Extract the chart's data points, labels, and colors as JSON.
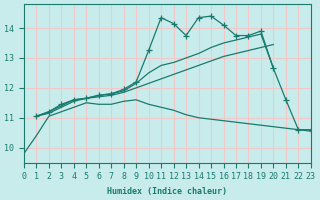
{
  "xlabel": "Humidex (Indice chaleur)",
  "bg_color": "#c8ecec",
  "grid_color": "#f0c8c8",
  "line_color": "#1a7a6e",
  "xlim": [
    0,
    23
  ],
  "ylim": [
    9.5,
    14.8
  ],
  "xticks": [
    0,
    1,
    2,
    3,
    4,
    5,
    6,
    7,
    8,
    9,
    10,
    11,
    12,
    13,
    14,
    15,
    16,
    17,
    18,
    19,
    20,
    21,
    22,
    23
  ],
  "yticks": [
    10,
    11,
    12,
    13,
    14
  ],
  "series": [
    {
      "x": [
        0,
        1,
        2,
        3,
        4,
        5,
        6,
        7,
        8,
        9,
        10,
        11,
        12,
        13,
        14,
        15,
        16,
        17,
        18,
        19,
        20,
        21,
        22,
        23
      ],
      "y": [
        9.8,
        10.4,
        11.05,
        11.2,
        11.35,
        11.5,
        11.45,
        11.45,
        11.55,
        11.6,
        11.45,
        11.35,
        11.25,
        11.1,
        11.0,
        10.95,
        10.9,
        10.85,
        10.8,
        10.75,
        10.7,
        10.65,
        10.6,
        10.55
      ],
      "marker": false
    },
    {
      "x": [
        1,
        2,
        3,
        4,
        5,
        6,
        7,
        8,
        9,
        10,
        11,
        12,
        13,
        14,
        15,
        16,
        17,
        18,
        19,
        20
      ],
      "y": [
        11.05,
        11.15,
        11.35,
        11.55,
        11.65,
        11.7,
        11.75,
        11.85,
        12.0,
        12.15,
        12.3,
        12.45,
        12.6,
        12.75,
        12.9,
        13.05,
        13.15,
        13.25,
        13.35,
        13.45
      ],
      "marker": false
    },
    {
      "x": [
        1,
        2,
        3,
        4,
        5,
        6,
        7,
        8,
        9,
        10,
        11,
        12,
        13,
        14,
        15,
        16,
        17,
        18,
        19,
        20
      ],
      "y": [
        11.05,
        11.2,
        11.4,
        11.6,
        11.65,
        11.75,
        11.8,
        11.9,
        12.15,
        12.5,
        12.75,
        12.85,
        13.0,
        13.15,
        13.35,
        13.5,
        13.6,
        13.7,
        13.8,
        12.65
      ],
      "marker": false
    },
    {
      "x": [
        1,
        2,
        3,
        4,
        5,
        6,
        7,
        8,
        9,
        10,
        11,
        12,
        13,
        14,
        15,
        16,
        17,
        18,
        19,
        20,
        21,
        22,
        23
      ],
      "y": [
        11.05,
        11.2,
        11.45,
        11.6,
        11.65,
        11.75,
        11.8,
        11.95,
        12.2,
        13.25,
        14.35,
        14.15,
        13.75,
        14.35,
        14.4,
        14.1,
        13.75,
        13.75,
        13.9,
        12.65,
        11.6,
        10.6,
        10.6
      ],
      "marker": true
    }
  ]
}
